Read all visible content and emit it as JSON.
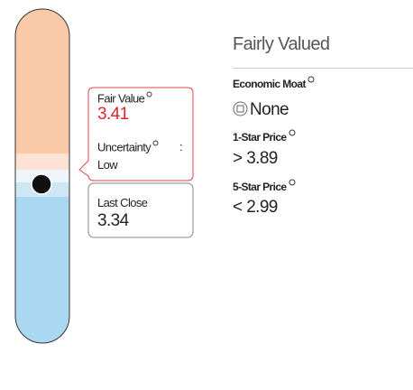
{
  "valuation": {
    "rating": "Fairly Valued",
    "fair_value": {
      "label": "Fair Value",
      "value": "3.41",
      "uncertainty_label": "Uncertainty",
      "separator": ":",
      "uncertainty": "Low"
    },
    "last_close": {
      "label": "Last Close",
      "value": "3.34"
    },
    "economic_moat": {
      "label": "Economic Moat",
      "value": "None"
    },
    "one_star": {
      "label": "1-Star Price",
      "comparator": ">",
      "value": "3.89"
    },
    "five_star": {
      "label": "5-Star Price",
      "comparator": "<",
      "value": "2.99"
    }
  }
}
